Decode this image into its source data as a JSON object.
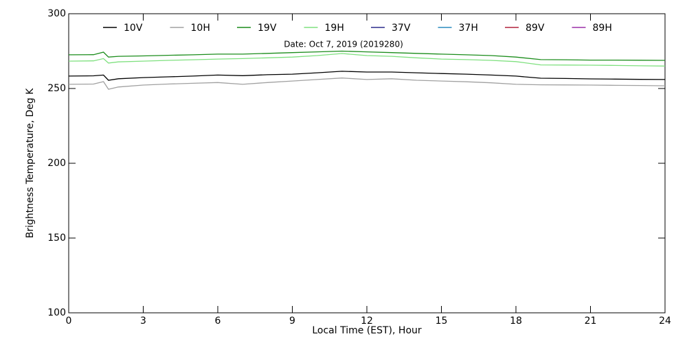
{
  "chart_data": {
    "type": "line",
    "annotation": "Date: Oct  7, 2019 (2019280)",
    "xlabel": "Local Time (EST), Hour",
    "ylabel": "Brightness Temperature, Deg K",
    "x": [
      0,
      1,
      1.4,
      1.6,
      2,
      3,
      4,
      5,
      6,
      7,
      8,
      9,
      10,
      11,
      12,
      13,
      14,
      15,
      16,
      17,
      18,
      19,
      20,
      21,
      22,
      23,
      24
    ],
    "series": [
      {
        "name": "10V",
        "color": "#000000",
        "values": [
          258.3,
          258.5,
          259,
          255.5,
          256.5,
          257.3,
          257.8,
          258.3,
          259,
          258.6,
          259.2,
          259.6,
          260.5,
          261.5,
          261,
          261,
          260.5,
          260,
          259.6,
          259,
          258.3,
          256.9,
          256.7,
          256.4,
          256.3,
          256.1,
          256
        ]
      },
      {
        "name": "10H",
        "color": "#a0a0a0",
        "values": [
          252.8,
          253,
          254.6,
          249.5,
          251,
          252.3,
          253,
          253.5,
          254,
          252.8,
          254,
          255,
          256,
          257,
          256,
          256.5,
          255.5,
          255,
          254.5,
          253.8,
          252.8,
          252.5,
          252.4,
          252.3,
          252.1,
          252,
          251.8
        ]
      },
      {
        "name": "19V",
        "color": "#1a8c1a",
        "values": [
          272.5,
          272.6,
          274.3,
          271,
          271.5,
          271.8,
          272.2,
          272.5,
          273,
          273,
          273.5,
          274,
          274.5,
          275,
          274.5,
          274,
          273.5,
          273,
          272.5,
          272,
          271,
          269.3,
          269.2,
          269,
          269,
          268.9,
          268.8
        ]
      },
      {
        "name": "19H",
        "color": "#7ee07e",
        "values": [
          268.3,
          268.5,
          270,
          267,
          267.8,
          268.3,
          268.8,
          269.2,
          269.7,
          270,
          270.5,
          271,
          272,
          273.4,
          272,
          271.5,
          270.5,
          269.7,
          269.3,
          268.8,
          268,
          265.8,
          265.7,
          265.6,
          265.4,
          265.2,
          265
        ]
      },
      {
        "name": "37V",
        "color": "#2c2c8c",
        "values": [
          null,
          null,
          null,
          null,
          null,
          null,
          null,
          null,
          null,
          null,
          null,
          null,
          null,
          null,
          null,
          null,
          null,
          null,
          null,
          null,
          null,
          null,
          null,
          null,
          null,
          null,
          null
        ]
      },
      {
        "name": "37H",
        "color": "#2a8cbf",
        "values": [
          null,
          null,
          null,
          null,
          null,
          null,
          null,
          null,
          null,
          null,
          null,
          null,
          null,
          null,
          null,
          null,
          null,
          null,
          null,
          null,
          null,
          null,
          null,
          null,
          null,
          null,
          null
        ]
      },
      {
        "name": "89V",
        "color": "#b0203c",
        "values": [
          null,
          null,
          null,
          null,
          null,
          null,
          null,
          null,
          null,
          null,
          null,
          null,
          null,
          null,
          null,
          null,
          null,
          null,
          null,
          null,
          null,
          null,
          null,
          null,
          null,
          null,
          null
        ]
      },
      {
        "name": "89H",
        "color": "#9a2fa8",
        "values": [
          null,
          null,
          null,
          null,
          null,
          null,
          null,
          null,
          null,
          null,
          null,
          null,
          null,
          null,
          null,
          null,
          null,
          null,
          null,
          null,
          null,
          null,
          null,
          null,
          null,
          null,
          null
        ]
      }
    ],
    "xlim": [
      0,
      24
    ],
    "xticks": [
      0,
      3,
      6,
      9,
      12,
      15,
      18,
      21,
      24
    ],
    "ylim": [
      100,
      300
    ],
    "yticks": [
      100,
      150,
      200,
      250,
      300
    ],
    "legend": "top"
  }
}
